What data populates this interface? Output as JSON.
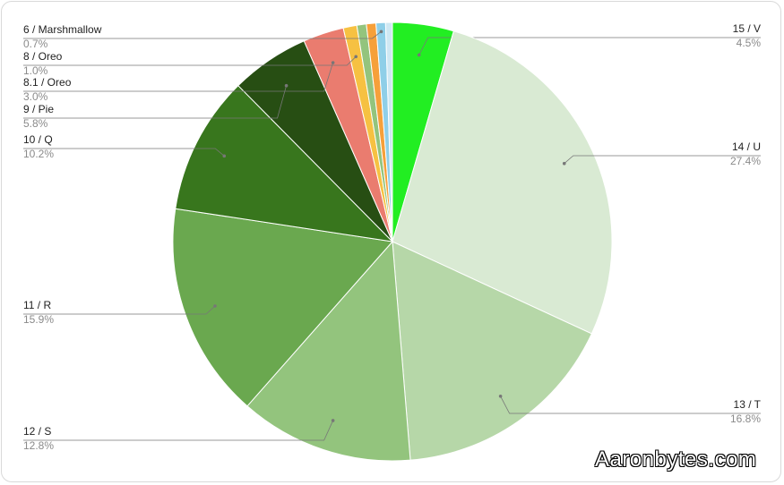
{
  "chart_data": {
    "type": "pie",
    "start_angle_deg": 0,
    "direction": "clockwise",
    "legend": "labels with leader lines",
    "slices": [
      {
        "label": "15 / V",
        "pct_text": "4.5%",
        "value": 4.5,
        "color": "#22ee22"
      },
      {
        "label": "14 / U",
        "pct_text": "27.4%",
        "value": 27.4,
        "color": "#d9ead3"
      },
      {
        "label": "13 / T",
        "pct_text": "16.8%",
        "value": 16.8,
        "color": "#b6d7a8"
      },
      {
        "label": "12 / S",
        "pct_text": "12.8%",
        "value": 12.8,
        "color": "#93c47d"
      },
      {
        "label": "11 / R",
        "pct_text": "15.9%",
        "value": 15.9,
        "color": "#6aa84f"
      },
      {
        "label": "10 / Q",
        "pct_text": "10.2%",
        "value": 10.2,
        "color": "#38761d"
      },
      {
        "label": "9 / Pie",
        "pct_text": "5.8%",
        "value": 5.8,
        "color": "#274e13"
      },
      {
        "label": "8.1 / Oreo",
        "pct_text": "3.0%",
        "value": 3.0,
        "color": "#ea7c6f"
      },
      {
        "label": "8 / Oreo",
        "pct_text": "1.0%",
        "value": 1.0,
        "color": "#f6c142"
      },
      {
        "label": "",
        "pct_text": "",
        "value": 0.7,
        "color": "#93c47d"
      },
      {
        "label": "",
        "pct_text": "",
        "value": 0.7,
        "color": "#f6a03a"
      },
      {
        "label": "6 / Marshmallow",
        "pct_text": "0.7%",
        "value": 0.7,
        "color": "#8fcfe8"
      },
      {
        "label": "",
        "pct_text": "",
        "value": 0.5,
        "color": "#cfe8f3"
      }
    ]
  },
  "watermark": "Aaronbytes.com"
}
